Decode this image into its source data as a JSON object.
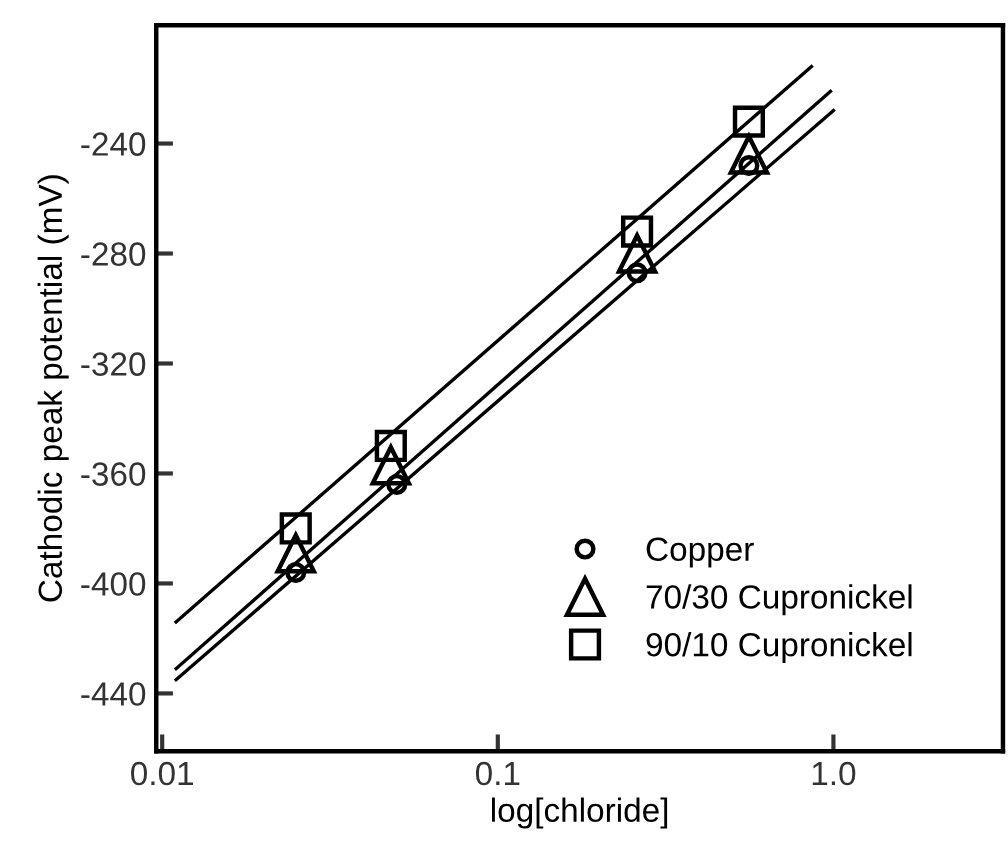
{
  "chart_data": {
    "type": "scatter",
    "xlabel": "log[chloride]",
    "ylabel": "Cathodic peak potential (mV)",
    "log": "x",
    "xlim": [
      0.0096,
      3.2
    ],
    "ylim": [
      -461,
      -197
    ],
    "xticks": [
      0.01,
      0.1,
      {
        "value": 1.0,
        "label": "1.0"
      }
    ],
    "yticks": [
      -240,
      -280,
      -320,
      -360,
      -400,
      -440
    ],
    "grid": false,
    "legend": "bottom right",
    "series": [
      {
        "name": "Copper",
        "marker": "circle",
        "color": "#000000",
        "x": [
          0.025,
          0.05,
          0.26,
          0.56
        ],
        "values": [
          -396,
          -364,
          -287,
          -248
        ]
      },
      {
        "name": "70/30 Cupronickel",
        "marker": "triangle",
        "color": "#000000",
        "x": [
          0.025,
          0.048,
          0.26,
          0.56
        ],
        "values": [
          -389,
          -357,
          -280,
          -244
        ]
      },
      {
        "name": "90/10 Cupronickel",
        "marker": "square",
        "color": "#000000",
        "x": [
          0.025,
          0.048,
          0.26,
          0.56
        ],
        "values": [
          -380,
          -350,
          -272,
          -232
        ]
      },
      {
        "type": "line",
        "line_style": "solid",
        "color": "#000000",
        "x": [
          0.011,
          0.86
        ],
        "values": [
          -414,
          -212
        ]
      },
      {
        "type": "line",
        "line_style": "solid",
        "color": "#000000",
        "x": [
          0.011,
          0.98
        ],
        "values": [
          -431,
          -221
        ]
      },
      {
        "type": "line",
        "line_style": "solid",
        "color": "#000000",
        "x": [
          0.011,
          1.0
        ],
        "values": [
          -435,
          -228
        ]
      }
    ]
  }
}
